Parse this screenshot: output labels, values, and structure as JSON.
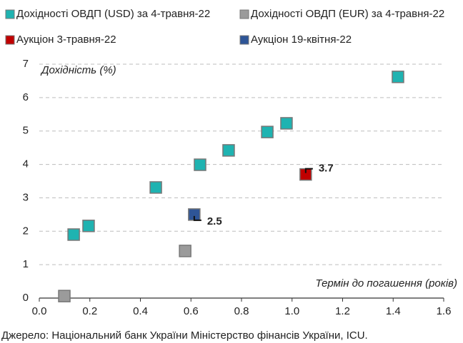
{
  "chart_data": {
    "type": "scatter",
    "y_label": "Дохідність (%)",
    "x_label": "Термін до погашення (років)",
    "source": "Джерело: Національний банк України Міністерство фінансів України, ICU.",
    "series": [
      {
        "name": "Дохідності ОВДП (USD) за 4-травня-22",
        "color": "#1fb3b1",
        "x": [
          0.136,
          0.195,
          0.461,
          0.636,
          0.749,
          0.902,
          0.978,
          1.419
        ],
        "values": [
          1.9,
          2.16,
          3.31,
          3.99,
          4.42,
          4.97,
          5.23,
          6.62
        ]
      },
      {
        "name": "Дохідності ОВДП (EUR) за 4-травня-22",
        "color": "#9b9b9b",
        "x": [
          0.099,
          0.577
        ],
        "values": [
          0.06,
          1.41
        ]
      },
      {
        "name": "Аукціон 3-травня-22",
        "color": "#c00000",
        "x": [
          1.054
        ],
        "values": [
          3.7
        ],
        "value_labels": [
          "3.7"
        ]
      },
      {
        "name": "Аукціон 19-квітня-22",
        "color": "#2e5597",
        "x": [
          0.613
        ],
        "values": [
          2.5
        ],
        "value_labels": [
          "2.5"
        ]
      }
    ],
    "xlim": [
      0,
      1.6
    ],
    "xticks": [
      {
        "value": 0,
        "label": "0.0"
      },
      0.2,
      0.4,
      0.6,
      0.8,
      {
        "value": 1,
        "label": "1.0"
      },
      1.2,
      1.4,
      1.6
    ],
    "ylim": [
      0,
      7
    ],
    "yticks": [
      0,
      1,
      2,
      3,
      4,
      5,
      6,
      7
    ],
    "grid": true
  }
}
